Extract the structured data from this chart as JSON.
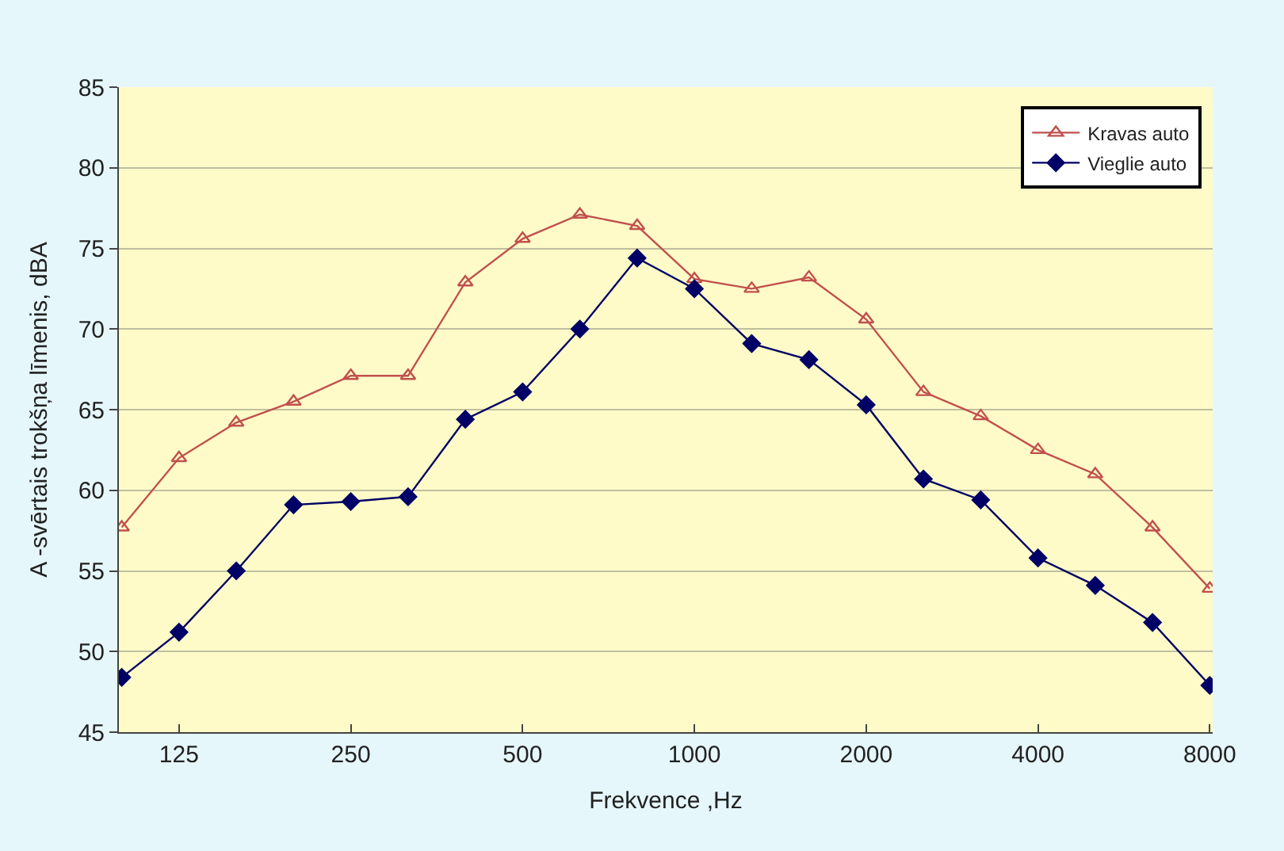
{
  "chart_data": {
    "type": "line",
    "xlabel": "Frekvence ,Hz",
    "ylabel": "A -svērtais trokšņa līmenis, dBA",
    "categories": [
      null,
      "125",
      null,
      null,
      "250",
      null,
      null,
      "500",
      null,
      null,
      "1000",
      null,
      null,
      "2000",
      null,
      null,
      "4000",
      null,
      null,
      "8000"
    ],
    "series": [
      {
        "name": "Kravas auto",
        "color": "#c0504d",
        "marker": "triangle",
        "values": [
          57.7,
          62.0,
          64.2,
          65.5,
          67.1,
          67.1,
          72.9,
          75.6,
          77.1,
          76.4,
          73.1,
          72.5,
          73.2,
          70.6,
          66.1,
          64.6,
          62.5,
          61.0,
          57.7,
          53.9
        ]
      },
      {
        "name": "Vieglie auto",
        "color": "#000066",
        "marker": "diamond",
        "values": [
          48.4,
          51.2,
          55.0,
          59.1,
          59.3,
          59.6,
          64.4,
          66.1,
          70.0,
          74.4,
          72.5,
          69.1,
          68.1,
          65.3,
          60.7,
          59.4,
          55.8,
          54.1,
          51.8,
          47.9
        ]
      }
    ],
    "ylim": [
      45,
      85
    ],
    "yticks": [
      45,
      50,
      55,
      60,
      65,
      70,
      75,
      80,
      85
    ],
    "grid": "y",
    "legend": "top right",
    "line_style": "solid"
  }
}
